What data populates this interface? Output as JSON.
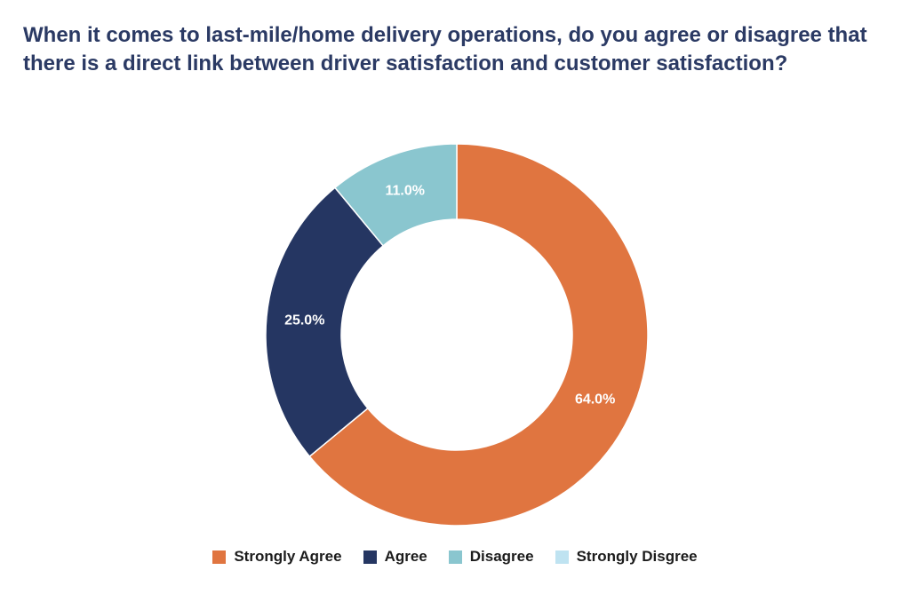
{
  "chart_data": {
    "type": "pie",
    "subtype": "donut",
    "title": "When it comes to last-mile/home delivery operations, do you agree or disagree that there is a direct link between driver satisfaction and customer satisfaction?",
    "categories": [
      "Strongly Agree",
      "Agree",
      "Disagree",
      "Strongly Disgree"
    ],
    "values": [
      64.0,
      25.0,
      11.0,
      0.0
    ],
    "value_labels": [
      "64.0%",
      "25.0%",
      "11.0%",
      ""
    ],
    "colors": [
      "#e07540",
      "#253662",
      "#8ac6cf",
      "#bfe3f1"
    ],
    "legend_position": "bottom-center",
    "start_angle": "12 o'clock",
    "direction": "clockwise"
  }
}
